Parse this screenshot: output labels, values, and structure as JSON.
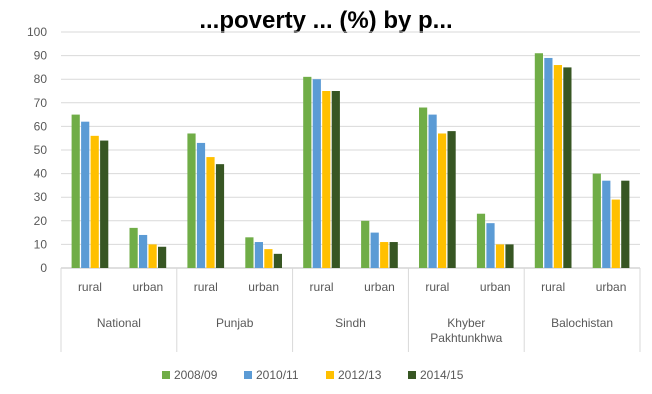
{
  "chart_data": {
    "type": "bar",
    "title": "...poverty ... (%) by p...",
    "xlabel": "",
    "ylabel": "",
    "ylim": [
      0,
      100
    ],
    "yticks": [
      0,
      10,
      20,
      30,
      40,
      50,
      60,
      70,
      80,
      90,
      100
    ],
    "grid": true,
    "legend_position": "bottom",
    "groups": [
      {
        "label": "National",
        "label_lines": [
          "National"
        ],
        "categories": [
          "rural",
          "urban"
        ]
      },
      {
        "label": "Punjab",
        "label_lines": [
          "Punjab"
        ],
        "categories": [
          "rural",
          "urban"
        ]
      },
      {
        "label": "Sindh",
        "label_lines": [
          "Sindh"
        ],
        "categories": [
          "rural",
          "urban"
        ]
      },
      {
        "label": "Khyber Pakhtunkhwa",
        "label_lines": [
          "Khyber",
          "Pakhtunkhwa"
        ],
        "categories": [
          "rural",
          "urban"
        ]
      },
      {
        "label": "Balochistan",
        "label_lines": [
          "Balochistan"
        ],
        "categories": [
          "rural",
          "urban"
        ]
      }
    ],
    "categories": [
      "National rural",
      "National urban",
      "Punjab rural",
      "Punjab urban",
      "Sindh rural",
      "Sindh urban",
      "Khyber Pakhtunkhwa rural",
      "Khyber Pakhtunkhwa urban",
      "Balochistan rural",
      "Balochistan urban"
    ],
    "series": [
      {
        "name": "2008/09",
        "color": "#70ad47",
        "values": [
          65,
          17,
          57,
          13,
          81,
          20,
          68,
          23,
          91,
          40
        ]
      },
      {
        "name": "2010/11",
        "color": "#5b9bd5",
        "values": [
          62,
          14,
          53,
          11,
          80,
          15,
          65,
          19,
          89,
          37
        ]
      },
      {
        "name": "2012/13",
        "color": "#ffc000",
        "values": [
          56,
          10,
          47,
          8,
          75,
          11,
          57,
          10,
          86,
          29
        ]
      },
      {
        "name": "2014/15",
        "color": "#375623",
        "values": [
          54,
          9,
          44,
          6,
          75,
          11,
          58,
          10,
          85,
          37
        ]
      }
    ]
  }
}
